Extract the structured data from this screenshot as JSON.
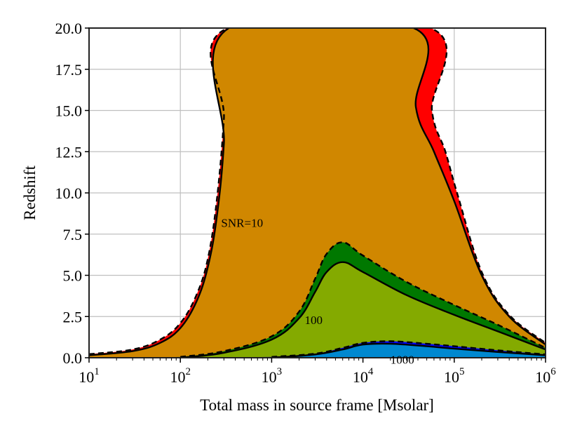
{
  "chart_data": {
    "type": "area",
    "title": "",
    "xlabel": "Total mass in source frame [Msolar]",
    "ylabel": "Redshift",
    "xscale": "log",
    "xlim": [
      10,
      1000000
    ],
    "ylim": [
      0,
      20
    ],
    "grid": true,
    "x_tick_labels": [
      {
        "base": "10",
        "exp": "1"
      },
      {
        "base": "10",
        "exp": "2"
      },
      {
        "base": "10",
        "exp": "3"
      },
      {
        "base": "10",
        "exp": "4"
      },
      {
        "base": "10",
        "exp": "5"
      },
      {
        "base": "10",
        "exp": "6"
      }
    ],
    "y_tick_labels": [
      "0.0",
      "2.5",
      "5.0",
      "7.5",
      "10.0",
      "12.5",
      "15.0",
      "17.5",
      "20.0"
    ],
    "annotations": [
      {
        "text": "SNR=10",
        "x": 280,
        "z": 8.2
      },
      {
        "text": "100",
        "x": 2300,
        "z": 2.3
      },
      {
        "text": "1000",
        "x": 20000,
        "z": -0.1
      }
    ],
    "colors": {
      "snr10_band": "#ff0000",
      "snr10_fill": "#d08700",
      "snr100_band": "#007800",
      "snr100_fill": "#84aa00",
      "snr1000_band": "#0000ff",
      "snr1000_fill": "#0088d0",
      "grid": "#bfbfbf"
    },
    "series": [
      {
        "name": "SNR=10 (solid)",
        "style": "solid",
        "points": [
          [
            10,
            0.15
          ],
          [
            30,
            0.4
          ],
          [
            60,
            0.9
          ],
          [
            100,
            1.8
          ],
          [
            150,
            3.4
          ],
          [
            200,
            5.5
          ],
          [
            250,
            8.5
          ],
          [
            300,
            13
          ],
          [
            340,
            20
          ],
          [
            36000,
            20
          ],
          [
            38000,
            15.2
          ],
          [
            60000,
            12.5
          ],
          [
            100000,
            9.5
          ],
          [
            200000,
            5.0
          ],
          [
            400000,
            2.5
          ],
          [
            1000000,
            0.8
          ]
        ]
      },
      {
        "name": "SNR=10 (dashed)",
        "style": "dashed",
        "points": [
          [
            10,
            0.22
          ],
          [
            30,
            0.5
          ],
          [
            60,
            1.1
          ],
          [
            100,
            2.1
          ],
          [
            150,
            3.8
          ],
          [
            200,
            6.0
          ],
          [
            250,
            9.5
          ],
          [
            300,
            14.5
          ],
          [
            330,
            20
          ],
          [
            55000,
            20
          ],
          [
            57000,
            15.0
          ],
          [
            80000,
            12.5
          ],
          [
            110000,
            9.8
          ],
          [
            200000,
            5.2
          ],
          [
            400000,
            2.6
          ],
          [
            1000000,
            0.9
          ]
        ]
      },
      {
        "name": "SNR=100 (solid)",
        "style": "solid",
        "points": [
          [
            100,
            0.0
          ],
          [
            300,
            0.3
          ],
          [
            1000,
            1.1
          ],
          [
            2000,
            2.4
          ],
          [
            3000,
            4.0
          ],
          [
            4000,
            5.2
          ],
          [
            6000,
            5.8
          ],
          [
            10000,
            5.2
          ],
          [
            30000,
            3.8
          ],
          [
            100000,
            2.6
          ],
          [
            300000,
            1.6
          ],
          [
            1000000,
            0.5
          ]
        ]
      },
      {
        "name": "SNR=100 (dashed)",
        "style": "dashed",
        "points": [
          [
            100,
            0.05
          ],
          [
            300,
            0.4
          ],
          [
            1000,
            1.3
          ],
          [
            2000,
            2.8
          ],
          [
            3000,
            4.8
          ],
          [
            4000,
            6.3
          ],
          [
            6000,
            7.0
          ],
          [
            10000,
            6.2
          ],
          [
            30000,
            4.6
          ],
          [
            100000,
            3.2
          ],
          [
            300000,
            2.0
          ],
          [
            1000000,
            0.6
          ]
        ]
      },
      {
        "name": "SNR=1000 (solid)",
        "style": "solid",
        "points": [
          [
            1000,
            0.0
          ],
          [
            3000,
            0.2
          ],
          [
            6000,
            0.5
          ],
          [
            10000,
            0.8
          ],
          [
            20000,
            0.85
          ],
          [
            50000,
            0.7
          ],
          [
            100000,
            0.55
          ],
          [
            300000,
            0.35
          ],
          [
            1000000,
            0.15
          ]
        ]
      },
      {
        "name": "SNR=1000 (dashed)",
        "style": "dashed",
        "points": [
          [
            1000,
            0.05
          ],
          [
            3000,
            0.25
          ],
          [
            6000,
            0.6
          ],
          [
            10000,
            0.9
          ],
          [
            20000,
            1.0
          ],
          [
            50000,
            0.85
          ],
          [
            100000,
            0.7
          ],
          [
            300000,
            0.45
          ],
          [
            1000000,
            0.2
          ]
        ]
      }
    ]
  }
}
